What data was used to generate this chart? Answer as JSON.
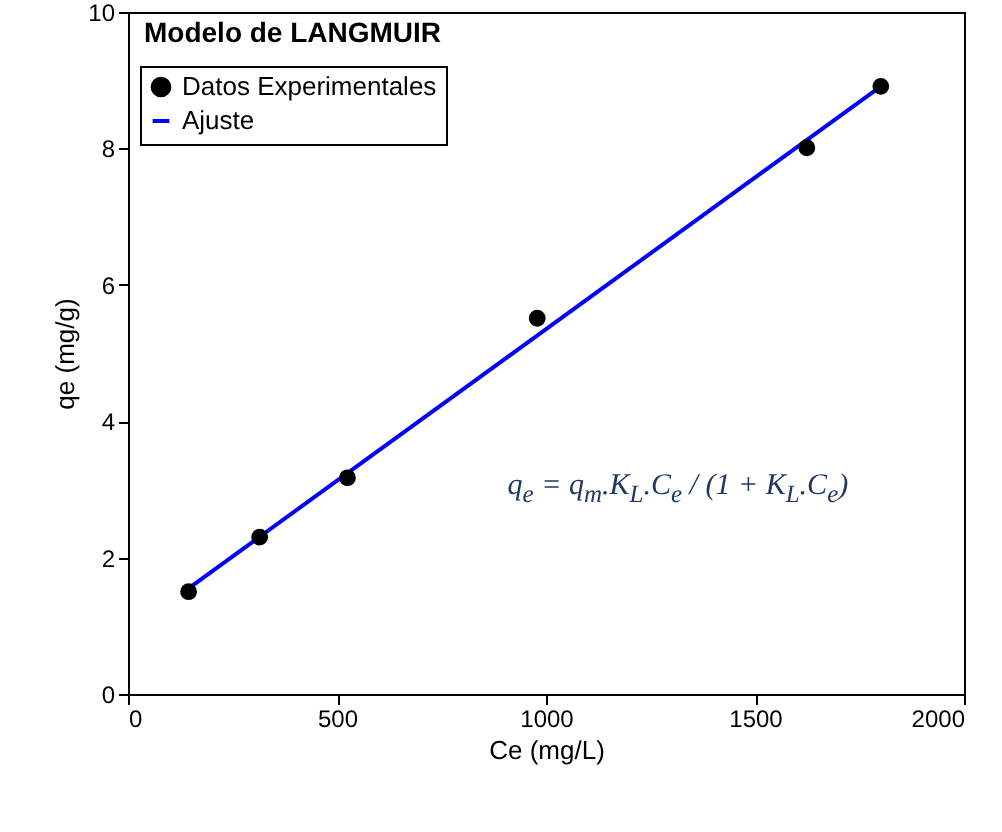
{
  "chart_data": {
    "type": "scatter",
    "title": "Modelo de LANGMUIR",
    "xlabel": "Ce (mg/L)",
    "ylabel": "qe (mg/g)",
    "annotations": [
      "q$_{e}$ = q$_{m}$.K$_{L}$.C$_{e}$ / (1 + K$_{L}$.C$_{e}$)"
    ],
    "series": [
      {
        "name": "Datos Experimentales",
        "marker": "circle",
        "color": "#000000",
        "x": [
          145,
          315,
          525,
          979,
          1624,
          1801
        ],
        "values": [
          1.5,
          2.3,
          3.17,
          5.51,
          8.01,
          8.91
        ]
      },
      {
        "name": "Ajuste",
        "type": "line",
        "marker": "none",
        "color": "#0000ff",
        "x": [
          145,
          1801
        ],
        "values": [
          1.55,
          8.91
        ]
      }
    ],
    "xlim": [
      0,
      2000
    ],
    "xticks": [
      0,
      500,
      1000,
      1500,
      2000
    ],
    "ylim": [
      0,
      10
    ],
    "yticks": [
      0,
      2,
      4,
      6,
      8,
      10
    ],
    "grid": false,
    "legend": "top left",
    "line_style": "solid"
  }
}
